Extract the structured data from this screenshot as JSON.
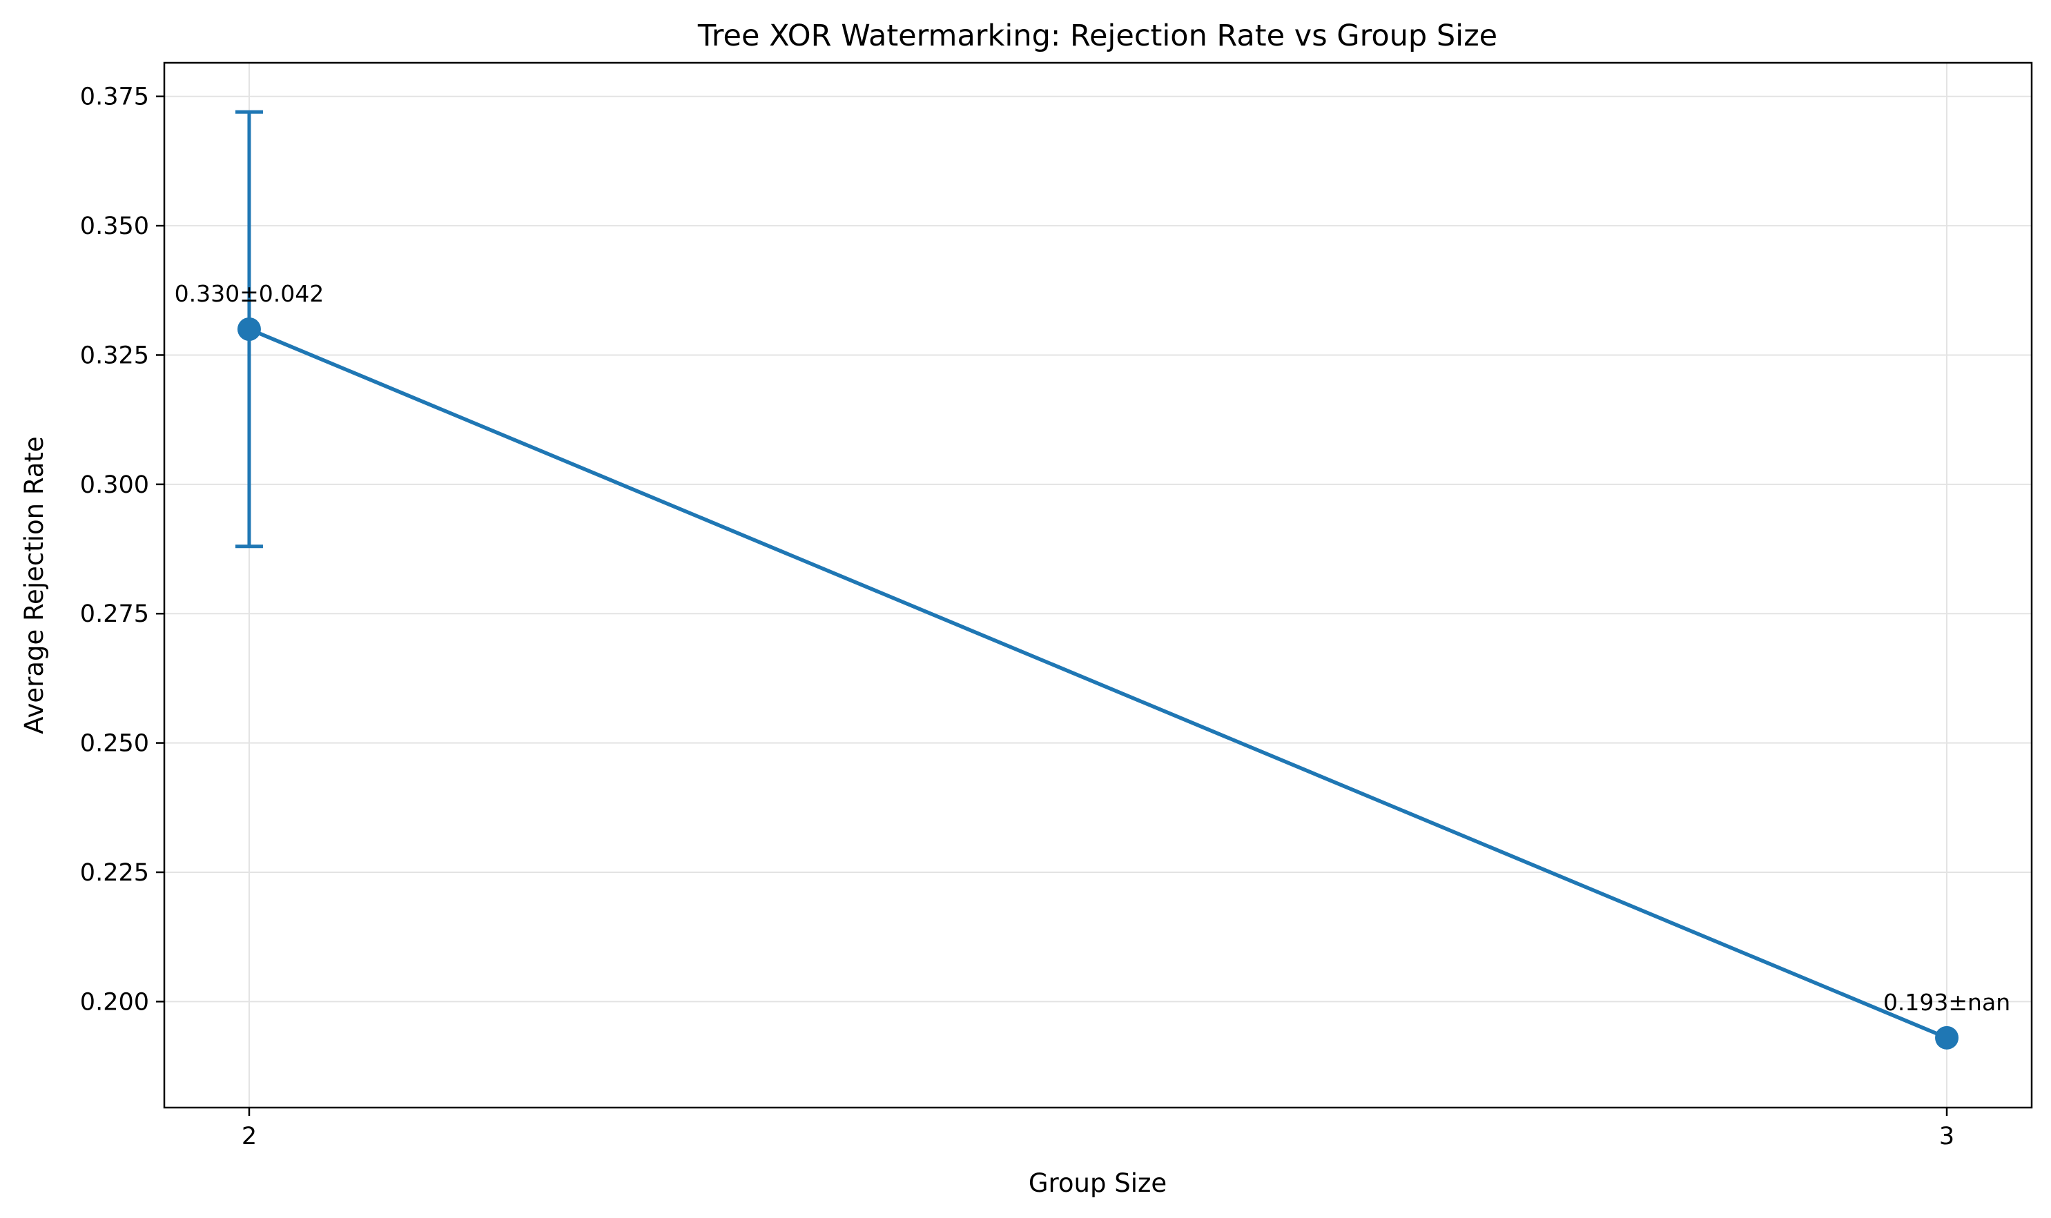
{
  "chart_data": {
    "type": "line",
    "title": "Tree XOR Watermarking: Rejection Rate vs Group Size",
    "xlabel": "Group Size",
    "ylabel": "Average Rejection Rate",
    "x": [
      2,
      3
    ],
    "x_tick_labels": [
      "2",
      "3"
    ],
    "xlim": [
      1.95,
      3.05
    ],
    "ylim": [
      0.1795,
      0.3815
    ],
    "y_ticks": [
      0.2,
      0.225,
      0.25,
      0.275,
      0.3,
      0.325,
      0.35,
      0.375
    ],
    "y_tick_labels": [
      "0.200",
      "0.225",
      "0.250",
      "0.275",
      "0.300",
      "0.325",
      "0.350",
      "0.375"
    ],
    "grid": true,
    "legend": "none",
    "series": [
      {
        "values": [
          0.33,
          0.193
        ],
        "errors": [
          0.042,
          null
        ],
        "point_labels": [
          "0.330±0.042",
          "0.193±nan"
        ],
        "color": "#1f77b4"
      }
    ]
  }
}
